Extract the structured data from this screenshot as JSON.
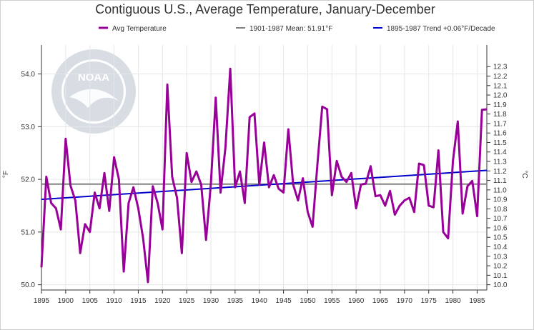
{
  "colors": {
    "avg": "#990099",
    "mean": "#808080",
    "trend": "#0000cc",
    "grid": "#e6e6e6",
    "logo": "#d8dde4"
  },
  "logo_text": "NOAA",
  "chart_data": {
    "type": "line",
    "title": "Contiguous U.S., Average Temperature, January-December",
    "ylabel": "°F",
    "y2label": "°C",
    "x": [
      1895,
      1896,
      1897,
      1898,
      1899,
      1900,
      1901,
      1902,
      1903,
      1904,
      1905,
      1906,
      1907,
      1908,
      1909,
      1910,
      1911,
      1912,
      1913,
      1914,
      1915,
      1916,
      1917,
      1918,
      1919,
      1920,
      1921,
      1922,
      1923,
      1924,
      1925,
      1926,
      1927,
      1928,
      1929,
      1930,
      1931,
      1932,
      1933,
      1934,
      1935,
      1936,
      1937,
      1938,
      1939,
      1940,
      1941,
      1942,
      1943,
      1944,
      1945,
      1946,
      1947,
      1948,
      1949,
      1950,
      1951,
      1952,
      1953,
      1954,
      1955,
      1956,
      1957,
      1958,
      1959,
      1960,
      1961,
      1962,
      1963,
      1964,
      1965,
      1966,
      1967,
      1968,
      1969,
      1970,
      1971,
      1972,
      1973,
      1974,
      1975,
      1976,
      1977,
      1978,
      1979,
      1980,
      1981,
      1982,
      1983,
      1984,
      1985,
      1986,
      1987
    ],
    "xlim": [
      1895,
      1987
    ],
    "xticks": [
      "1895",
      "1900",
      "1905",
      "1910",
      "1915",
      "1920",
      "1925",
      "1930",
      "1935",
      "1940",
      "1945",
      "1950",
      "1955",
      "1960",
      "1965",
      "1970",
      "1975",
      "1980",
      "1985"
    ],
    "ylim": [
      49.9,
      54.55
    ],
    "yticks": [
      "50.0",
      "51.0",
      "52.0",
      "53.0",
      "54.0"
    ],
    "y2ticks": [
      "10.0",
      "10.1",
      "10.2",
      "10.3",
      "10.4",
      "10.5",
      "10.6",
      "10.7",
      "10.8",
      "10.9",
      "11.0",
      "11.1",
      "11.2",
      "11.3",
      "11.4",
      "11.5",
      "11.6",
      "11.7",
      "11.8",
      "11.9",
      "12.0",
      "12.1",
      "12.2",
      "12.3"
    ],
    "grid": true,
    "legend_position": "top",
    "series": [
      {
        "name": "Avg Temperature",
        "kind": "line",
        "values": [
          50.33,
          52.05,
          51.55,
          51.45,
          51.05,
          52.77,
          51.88,
          51.6,
          50.6,
          51.15,
          51.0,
          51.75,
          51.45,
          52.12,
          51.4,
          52.42,
          52.0,
          50.25,
          51.55,
          51.85,
          51.45,
          50.88,
          50.05,
          51.87,
          51.55,
          51.05,
          53.8,
          52.05,
          51.65,
          50.6,
          52.5,
          51.95,
          52.15,
          51.9,
          50.85,
          51.92,
          53.55,
          51.75,
          52.6,
          54.1,
          51.85,
          52.15,
          51.55,
          53.18,
          53.25,
          51.9,
          52.7,
          51.85,
          52.08,
          51.82,
          51.75,
          52.95,
          51.9,
          51.6,
          52.02,
          51.38,
          51.1,
          52.28,
          53.38,
          53.33,
          51.7,
          52.35,
          52.05,
          51.95,
          52.12,
          51.45,
          51.9,
          51.92,
          52.25,
          51.68,
          51.7,
          51.5,
          51.78,
          51.33,
          51.5,
          51.6,
          51.65,
          51.38,
          52.3,
          52.27,
          51.5,
          51.47,
          52.55,
          51.0,
          50.88,
          52.35,
          53.1,
          51.35,
          51.87,
          51.97,
          51.3,
          53.32,
          53.33
        ]
      },
      {
        "name": "1901-1987 Mean: 51.91°F",
        "kind": "hline",
        "value": 51.91
      },
      {
        "name": "1895-1987 Trend +0.06°F/Decade",
        "kind": "trend",
        "x": [
          1895,
          1987
        ],
        "values": [
          51.62,
          52.17
        ]
      }
    ]
  }
}
